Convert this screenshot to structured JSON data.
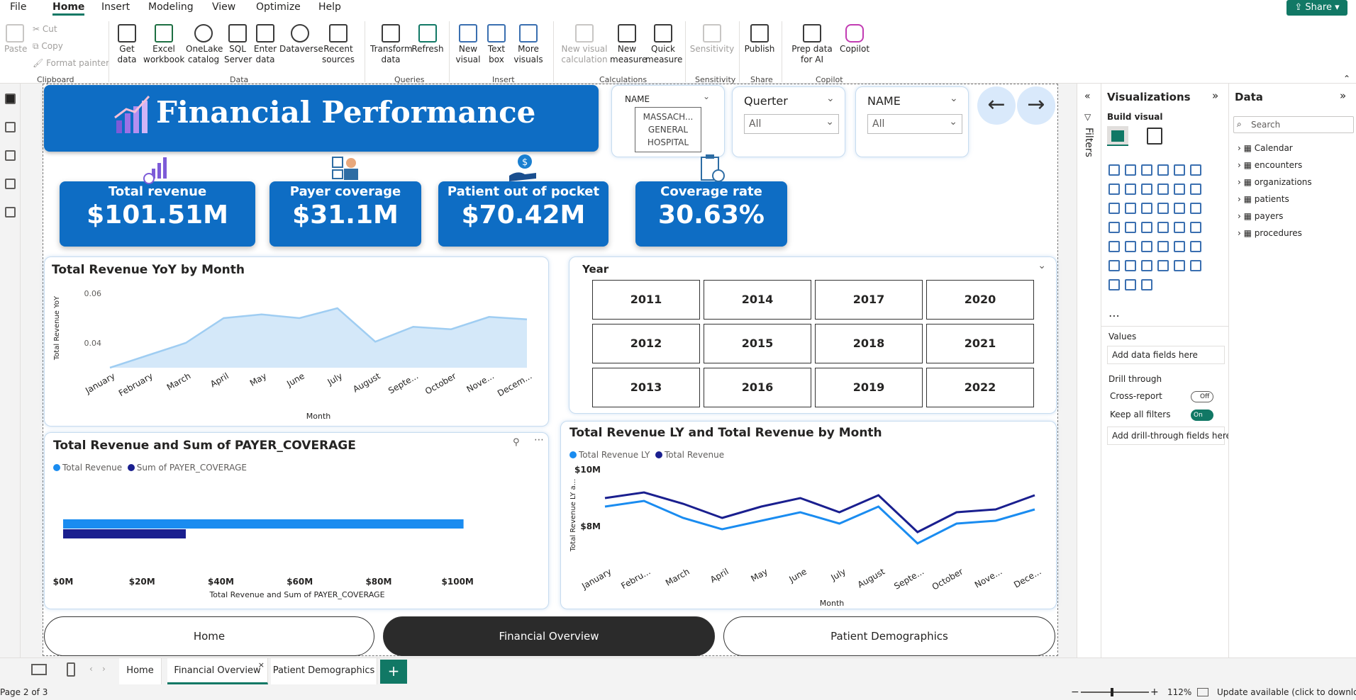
{
  "menu": {
    "items": [
      "File",
      "Home",
      "Insert",
      "Modeling",
      "View",
      "Optimize",
      "Help"
    ],
    "active": "Home",
    "share": "Share"
  },
  "ribbon": {
    "clipboard": {
      "paste": "Paste",
      "cut": "Cut",
      "copy": "Copy",
      "format_painter": "Format painter",
      "label": "Clipboard"
    },
    "data": {
      "get_data": "Get data",
      "excel": "Excel workbook",
      "onelake": "OneLake catalog",
      "sql": "SQL Server",
      "enter": "Enter data",
      "dataverse": "Dataverse",
      "recent": "Recent sources",
      "label": "Data"
    },
    "queries": {
      "transform": "Transform data",
      "refresh": "Refresh",
      "label": "Queries"
    },
    "insert": {
      "new_visual": "New visual",
      "text_box": "Text box",
      "more_visuals": "More visuals",
      "label": "Insert"
    },
    "calculations": {
      "new_visual_calc": "New visual calculation",
      "new_measure": "New measure",
      "quick_measure": "Quick measure",
      "label": "Calculations"
    },
    "sensitivity": {
      "sensitivity": "Sensitivity",
      "label": "Sensitivity"
    },
    "share": {
      "publish": "Publish",
      "label": "Share"
    },
    "copilot": {
      "prep": "Prep data for AI",
      "copilot": "Copilot",
      "label": "Copilot"
    }
  },
  "report": {
    "title": "Financial Performance",
    "kpis": [
      {
        "label": "Total revenue",
        "value": "$101.51M",
        "icon": "revenue-chart-icon"
      },
      {
        "label": "Payer coverage",
        "value": "$31.1M",
        "icon": "payer-icon"
      },
      {
        "label": "Patient out of pocket",
        "value": "$70.42M",
        "icon": "money-hand-icon"
      },
      {
        "label": "Coverage rate",
        "value": "30.63%",
        "icon": "clipboard-icon"
      }
    ],
    "name_slicer": {
      "label": "NAME",
      "value_line1": "MASSACH...",
      "value_line2": "GENERAL",
      "value_line3": "HOSPITAL"
    },
    "quarter_slicer": {
      "label": "Querter",
      "value": "All"
    },
    "name_slicer2": {
      "label": "NAME",
      "value": "All"
    },
    "year_slicer": {
      "label": "Year",
      "years": [
        "2011",
        "2014",
        "2017",
        "2020",
        "2012",
        "2015",
        "2018",
        "2021",
        "2013",
        "2016",
        "2019",
        "2022"
      ]
    },
    "nav": {
      "home": "Home",
      "financial": "Financial Overview",
      "patient": "Patient Demographics"
    }
  },
  "chart_data": [
    {
      "type": "area",
      "title": "Total Revenue YoY by Month",
      "xlabel": "Month",
      "ylabel": "Total Revenue YoY",
      "categories": [
        "January",
        "February",
        "March",
        "April",
        "May",
        "June",
        "July",
        "August",
        "Septe...",
        "October",
        "Nove...",
        "Decem..."
      ],
      "tick_labels": [
        "0.06",
        "0.04"
      ],
      "values": [
        0.03,
        0.035,
        0.04,
        0.05,
        0.0515,
        0.05,
        0.054,
        0.0405,
        0.0465,
        0.0455,
        0.0505,
        0.0495
      ],
      "ylim": [
        0.03,
        0.062
      ]
    },
    {
      "type": "bar",
      "title": "Total Revenue and Sum of PAYER_COVERAGE",
      "xlabel": "Total Revenue and Sum of PAYER_COVERAGE",
      "series": [
        {
          "name": "Total Revenue",
          "values": [
            101.51
          ]
        },
        {
          "name": "Sum of PAYER_COVERAGE",
          "values": [
            31.1
          ]
        }
      ],
      "tick_labels": [
        "$0M",
        "$20M",
        "$40M",
        "$60M",
        "$80M",
        "$100M"
      ],
      "xlim": [
        0,
        105
      ]
    },
    {
      "type": "line",
      "title": "Total Revenue LY and Total Revenue by Month",
      "xlabel": "Month",
      "ylabel": "Total Revenue LY a...",
      "categories": [
        "January",
        "Febru...",
        "March",
        "April",
        "May",
        "June",
        "July",
        "August",
        "Septe...",
        "October",
        "Nove...",
        "Dece..."
      ],
      "tick_labels": [
        "$10M",
        "$8M"
      ],
      "series": [
        {
          "name": "Total Revenue LY",
          "values": [
            8.5,
            8.7,
            8.1,
            7.7,
            8.0,
            8.3,
            7.9,
            8.5,
            7.2,
            7.9,
            8.0,
            8.4
          ]
        },
        {
          "name": "Total Revenue",
          "values": [
            8.8,
            9.0,
            8.6,
            8.1,
            8.5,
            8.8,
            8.3,
            8.9,
            7.6,
            8.3,
            8.4,
            8.9
          ]
        }
      ],
      "ylim": [
        7.0,
        10.0
      ]
    }
  ],
  "panes": {
    "filters": "Filters",
    "visualizations": {
      "title": "Visualizations",
      "build": "Build visual",
      "values": "Values",
      "add_fields": "Add data fields here",
      "drill": "Drill through",
      "cross": "Cross-report",
      "cross_state": "Off",
      "keep": "Keep all filters",
      "keep_state": "On",
      "add_drill": "Add drill-through fields here"
    },
    "data": {
      "title": "Data",
      "search": "Search",
      "tables": [
        "Calendar",
        "encounters",
        "organizations",
        "patients",
        "payers",
        "procedures"
      ]
    }
  },
  "pages": {
    "tabs": [
      "Home",
      "Financial Overview",
      "Patient Demographics"
    ],
    "active": "Financial Overview",
    "add": "+"
  },
  "status": {
    "page": "Page 2 of 3",
    "zoom": "112%",
    "update": "Update available (click to download)"
  },
  "colors": {
    "accent": "#117865",
    "kpi": "#0e6dc4",
    "ly": "#1a8cf0",
    "cur": "#1a1f8f",
    "area": "#9fcdf2"
  }
}
